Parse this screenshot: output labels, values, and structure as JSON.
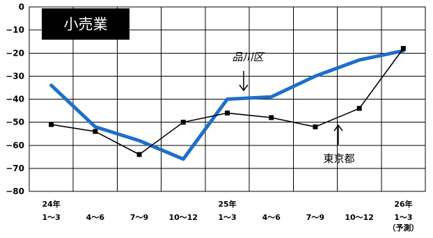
{
  "chart_data": {
    "type": "line",
    "title": "小売業",
    "ylim": [
      -80,
      0
    ],
    "yticks": [
      "0",
      "-10",
      "-20",
      "-30",
      "-40",
      "-50",
      "-60",
      "-70",
      "-80"
    ],
    "categories": [
      [
        "24年",
        "1～3",
        ""
      ],
      [
        "",
        "4～6",
        ""
      ],
      [
        "",
        "7～9",
        ""
      ],
      [
        "",
        "10～12",
        ""
      ],
      [
        "25年",
        "1～3",
        ""
      ],
      [
        "",
        "4～6",
        ""
      ],
      [
        "",
        "7～9",
        ""
      ],
      [
        "",
        "10～12",
        ""
      ],
      [
        "26年",
        "1～3",
        "（予測）"
      ]
    ],
    "series": [
      {
        "name": "品川区",
        "color": "#1f6fc9",
        "values": [
          -34,
          -52,
          -58,
          -66,
          -40,
          -39,
          -30,
          -23,
          -19
        ]
      },
      {
        "name": "東京都",
        "color": "#000000",
        "values": [
          -51,
          -54,
          -64,
          -50,
          -46,
          -48,
          -52,
          -44,
          -18
        ]
      }
    ],
    "grid": true,
    "legend": "inline annotations"
  }
}
